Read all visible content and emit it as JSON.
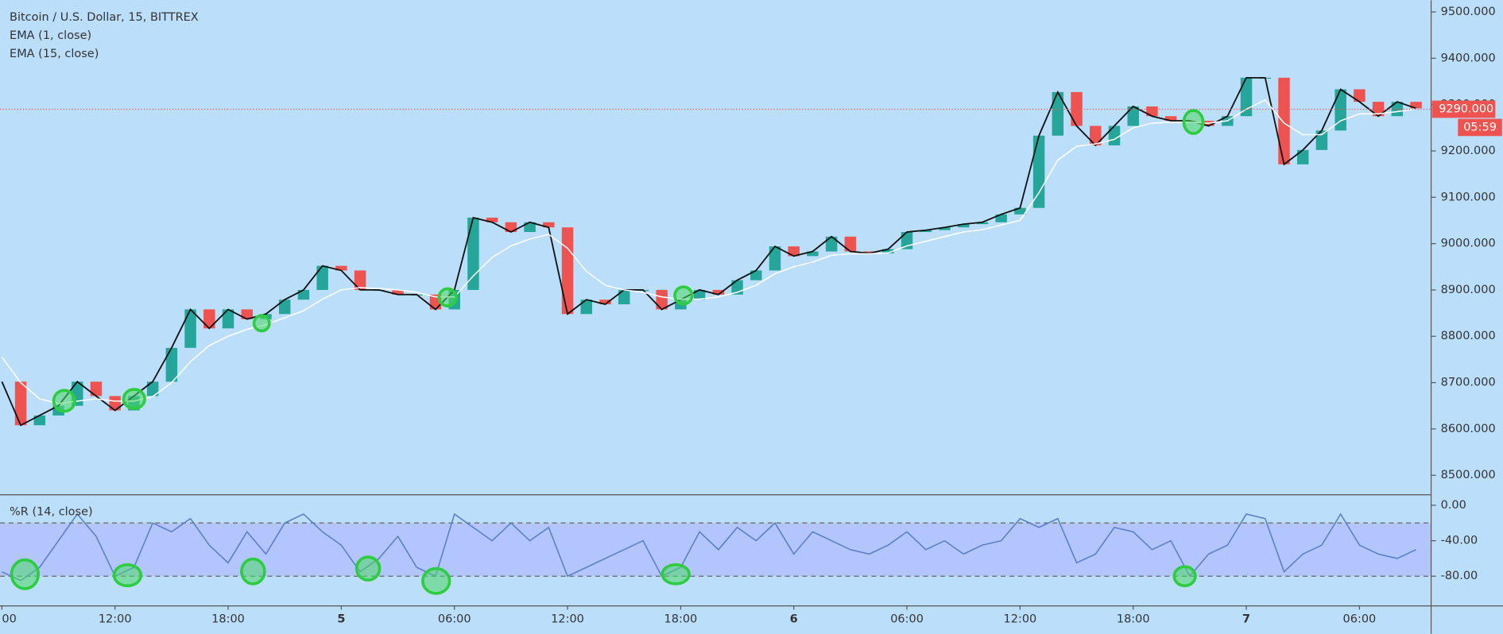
{
  "chart_data": [
    {
      "type": "line",
      "title": "Bitcoin / U.S. Dollar, 15, BITTREX",
      "x": [
        0,
        1,
        2,
        3,
        4,
        5,
        6,
        7,
        8,
        9,
        10,
        11,
        12,
        13,
        14,
        15,
        16,
        17,
        18,
        19,
        20,
        21,
        22,
        23,
        24,
        25,
        26,
        27,
        28,
        29,
        30,
        31,
        32,
        33,
        34,
        35,
        36,
        37,
        38,
        39,
        40,
        41,
        42,
        43,
        44,
        45,
        46,
        47,
        48,
        49,
        50,
        51,
        52,
        53,
        54,
        55,
        56,
        57,
        58,
        59,
        60,
        61,
        62,
        63,
        64,
        65,
        66,
        67,
        68,
        69,
        70,
        71,
        72,
        73,
        74,
        75
      ],
      "series": [
        {
          "name": "EMA (1, close)",
          "color": "#111111",
          "values": [
            8702,
            8608,
            8629,
            8650,
            8702,
            8671,
            8640,
            8671,
            8702,
            8775,
            8858,
            8817,
            8858,
            8837,
            8848,
            8879,
            8900,
            8952,
            8942,
            8900,
            8900,
            8890,
            8890,
            8858,
            8900,
            9056,
            9046,
            9025,
            9046,
            9035,
            8848,
            8879,
            8869,
            8900,
            8900,
            8858,
            8879,
            8900,
            8890,
            8921,
            8942,
            8994,
            8973,
            8983,
            9015,
            8983,
            8979,
            8988,
            9025,
            9029,
            9035,
            9042,
            9046,
            9063,
            9077,
            9233,
            9327,
            9254,
            9212,
            9254,
            9296,
            9275,
            9265,
            9265,
            9254,
            9275,
            9358,
            9358,
            9171,
            9202,
            9244,
            9333,
            9306,
            9275,
            9306,
            9292
          ]
        },
        {
          "name": "EMA (15, close)",
          "color": "#ffffff",
          "values": [
            8755,
            8700,
            8665,
            8655,
            8660,
            8665,
            8660,
            8660,
            8670,
            8700,
            8745,
            8780,
            8800,
            8815,
            8825,
            8840,
            8855,
            8880,
            8900,
            8905,
            8903,
            8900,
            8895,
            8885,
            8885,
            8930,
            8970,
            8995,
            9010,
            9020,
            8990,
            8940,
            8910,
            8900,
            8895,
            8885,
            8880,
            8880,
            8885,
            8895,
            8910,
            8935,
            8950,
            8960,
            8975,
            8978,
            8978,
            8980,
            8995,
            9005,
            9015,
            9025,
            9030,
            9040,
            9050,
            9110,
            9180,
            9210,
            9215,
            9225,
            9250,
            9260,
            9262,
            9262,
            9260,
            9265,
            9290,
            9310,
            9260,
            9235,
            9235,
            9265,
            9280,
            9280,
            9285,
            9290
          ]
        }
      ],
      "up_color": "#26a69a",
      "down_color": "#ef5350",
      "xlim": [
        -0.1,
        75.8
      ],
      "ylim": [
        8458,
        9525
      ],
      "yticks": [
        {
          "value": 9500,
          "label": "9500.000"
        },
        {
          "value": 9400,
          "label": "9400.000"
        },
        {
          "value": 9300,
          "label": "9300.000"
        },
        {
          "value": 9200,
          "label": "9200.000"
        },
        {
          "value": 9100,
          "label": "9100.000"
        },
        {
          "value": 9000,
          "label": "9000.000"
        },
        {
          "value": 8900,
          "label": "8900.000"
        },
        {
          "value": 8800,
          "label": "8800.000"
        },
        {
          "value": 8700,
          "label": "8700.000"
        },
        {
          "value": 8600,
          "label": "8600.000"
        },
        {
          "value": 8500,
          "label": "8500.000"
        }
      ],
      "last_price": {
        "value": 9290,
        "label": "9290.000"
      },
      "countdown": "05:59"
    },
    {
      "type": "line",
      "title": "%R (14, close)",
      "x": [
        0,
        1,
        2,
        3,
        4,
        5,
        6,
        7,
        8,
        9,
        10,
        11,
        12,
        13,
        14,
        15,
        16,
        17,
        18,
        19,
        20,
        21,
        22,
        23,
        24,
        25,
        26,
        27,
        28,
        29,
        30,
        31,
        32,
        33,
        34,
        35,
        36,
        37,
        38,
        39,
        40,
        41,
        42,
        43,
        44,
        45,
        46,
        47,
        48,
        49,
        50,
        51,
        52,
        53,
        54,
        55,
        56,
        57,
        58,
        59,
        60,
        61,
        62,
        63,
        64,
        65,
        66,
        67,
        68,
        69,
        70,
        71,
        72,
        73,
        74,
        75
      ],
      "series": [
        {
          "name": "%R",
          "color": "#5b7fc7",
          "values": [
            -75,
            -85,
            -70,
            -40,
            -10,
            -35,
            -80,
            -70,
            -20,
            -30,
            -15,
            -45,
            -65,
            -30,
            -55,
            -20,
            -10,
            -30,
            -45,
            -75,
            -60,
            -35,
            -70,
            -80,
            -10,
            -25,
            -40,
            -20,
            -40,
            -25,
            -80,
            -70,
            -60,
            -50,
            -40,
            -80,
            -70,
            -30,
            -50,
            -25,
            -40,
            -20,
            -55,
            -30,
            -40,
            -50,
            -55,
            -45,
            -30,
            -50,
            -40,
            -55,
            -45,
            -40,
            -15,
            -25,
            -15,
            -65,
            -55,
            -25,
            -30,
            -50,
            -40,
            -80,
            -55,
            -45,
            -10,
            -15,
            -75,
            -55,
            -45,
            -10,
            -45,
            -55,
            -60,
            -50
          ]
        }
      ],
      "levels": [
        -20,
        -80
      ],
      "xlim": [
        -0.1,
        75.8
      ],
      "ylim": [
        -113.5,
        10.8
      ],
      "yticks": [
        {
          "value": 0,
          "label": "0.00"
        },
        {
          "value": -40,
          "label": "-40.00"
        },
        {
          "value": -80,
          "label": "-80.00"
        }
      ],
      "xticks": [
        {
          "value": 0,
          "label": "00"
        },
        {
          "value": 6,
          "label": "12:00"
        },
        {
          "value": 12,
          "label": "18:00"
        },
        {
          "value": 18,
          "label": "5"
        },
        {
          "value": 24,
          "label": "06:00"
        },
        {
          "value": 30,
          "label": "12:00"
        },
        {
          "value": 36,
          "label": "18:00"
        },
        {
          "value": 42,
          "label": "6"
        },
        {
          "value": 48,
          "label": "06:00"
        },
        {
          "value": 54,
          "label": "12:00"
        },
        {
          "value": 60,
          "label": "18:00"
        },
        {
          "value": 66,
          "label": "7"
        },
        {
          "value": 72,
          "label": "06:00"
        }
      ]
    }
  ]
}
